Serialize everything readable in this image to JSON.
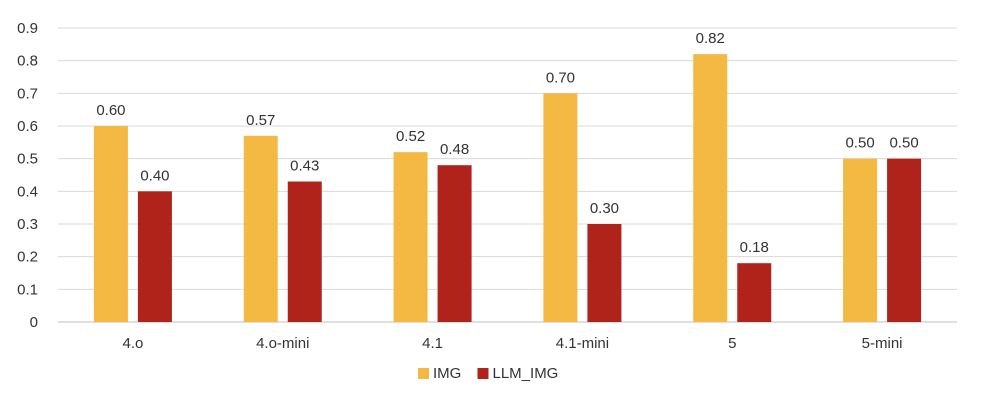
{
  "chart_data": {
    "type": "bar",
    "title": "",
    "xlabel": "",
    "ylabel": "",
    "categories": [
      "4.o",
      "4.o-mini",
      "4.1",
      "4.1-mini",
      "5",
      "5-mini"
    ],
    "series": [
      {
        "name": "IMG",
        "color": "#F4B942",
        "values": [
          0.6,
          0.57,
          0.52,
          0.7,
          0.82,
          0.5
        ]
      },
      {
        "name": "LLM_IMG",
        "color": "#B0231B",
        "values": [
          0.4,
          0.43,
          0.48,
          0.3,
          0.18,
          0.5
        ]
      }
    ],
    "ylim": [
      0,
      0.9
    ],
    "yticks": [
      "0",
      "0.1",
      "0.2",
      "0.3",
      "0.4",
      "0.5",
      "0.6",
      "0.7",
      "0.8",
      "0.9"
    ],
    "data_labels": [
      [
        "0.60",
        "0.57",
        "0.52",
        "0.70",
        "0.82",
        "0.50"
      ],
      [
        "0.40",
        "0.43",
        "0.48",
        "0.30",
        "0.18",
        "0.50"
      ]
    ],
    "grid": true,
    "legend_position": "bottom-center",
    "gridline_color": "#D9D9D9"
  }
}
